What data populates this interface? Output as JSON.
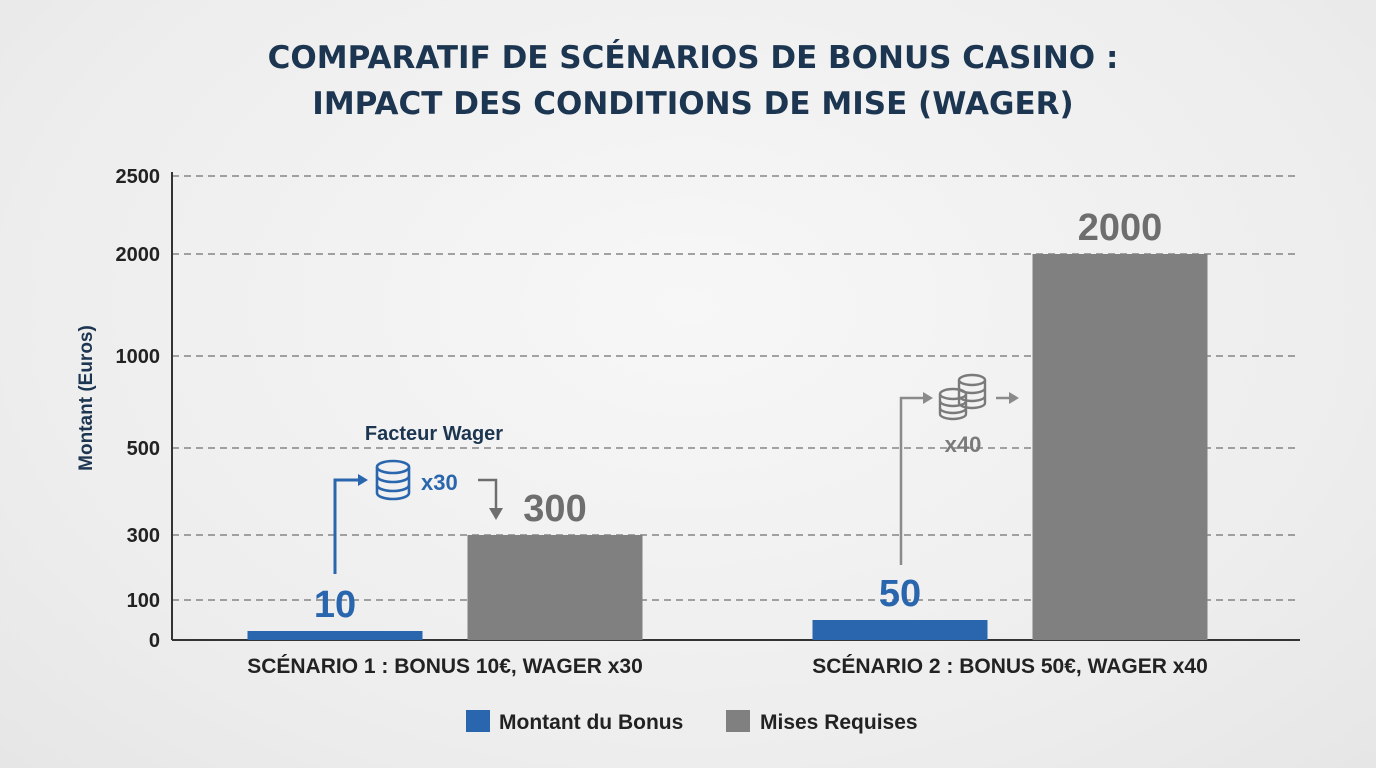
{
  "chart_data": {
    "type": "bar",
    "title": [
      "COMPARATIF DE SCÉNARIOS DE BONUS CASINO :",
      "IMPACT DES CONDITIONS DE MISE (WAGER)"
    ],
    "xlabel": "",
    "ylabel": "Montant (Euros)",
    "y_ticks": [
      0,
      100,
      300,
      500,
      1000,
      2000,
      2500
    ],
    "y_scale": "non-linear (ticks evenly labeled as shown)",
    "grid": true,
    "legend_position": "bottom-center",
    "categories": [
      "SCÉNARIO 1 : BONUS 10€, WAGER x30",
      "SCÉNARIO 2 : BONUS 50€, WAGER x40"
    ],
    "series": [
      {
        "name": "Montant du Bonus",
        "values": [
          10,
          50
        ],
        "color": "#2a66ad"
      },
      {
        "name": "Mises Requises",
        "values": [
          300,
          2000
        ],
        "color": "#808080"
      }
    ],
    "data_labels": [
      "10",
      "300",
      "50",
      "2000"
    ],
    "annotations": [
      {
        "title": "Facteur Wager",
        "text": "x30",
        "color": "#2a66ad",
        "icon": "coin-stack-icon"
      },
      {
        "title": "",
        "text": "x40",
        "color": "#7a7a7a",
        "icon": "coin-stacks-icon"
      }
    ]
  }
}
